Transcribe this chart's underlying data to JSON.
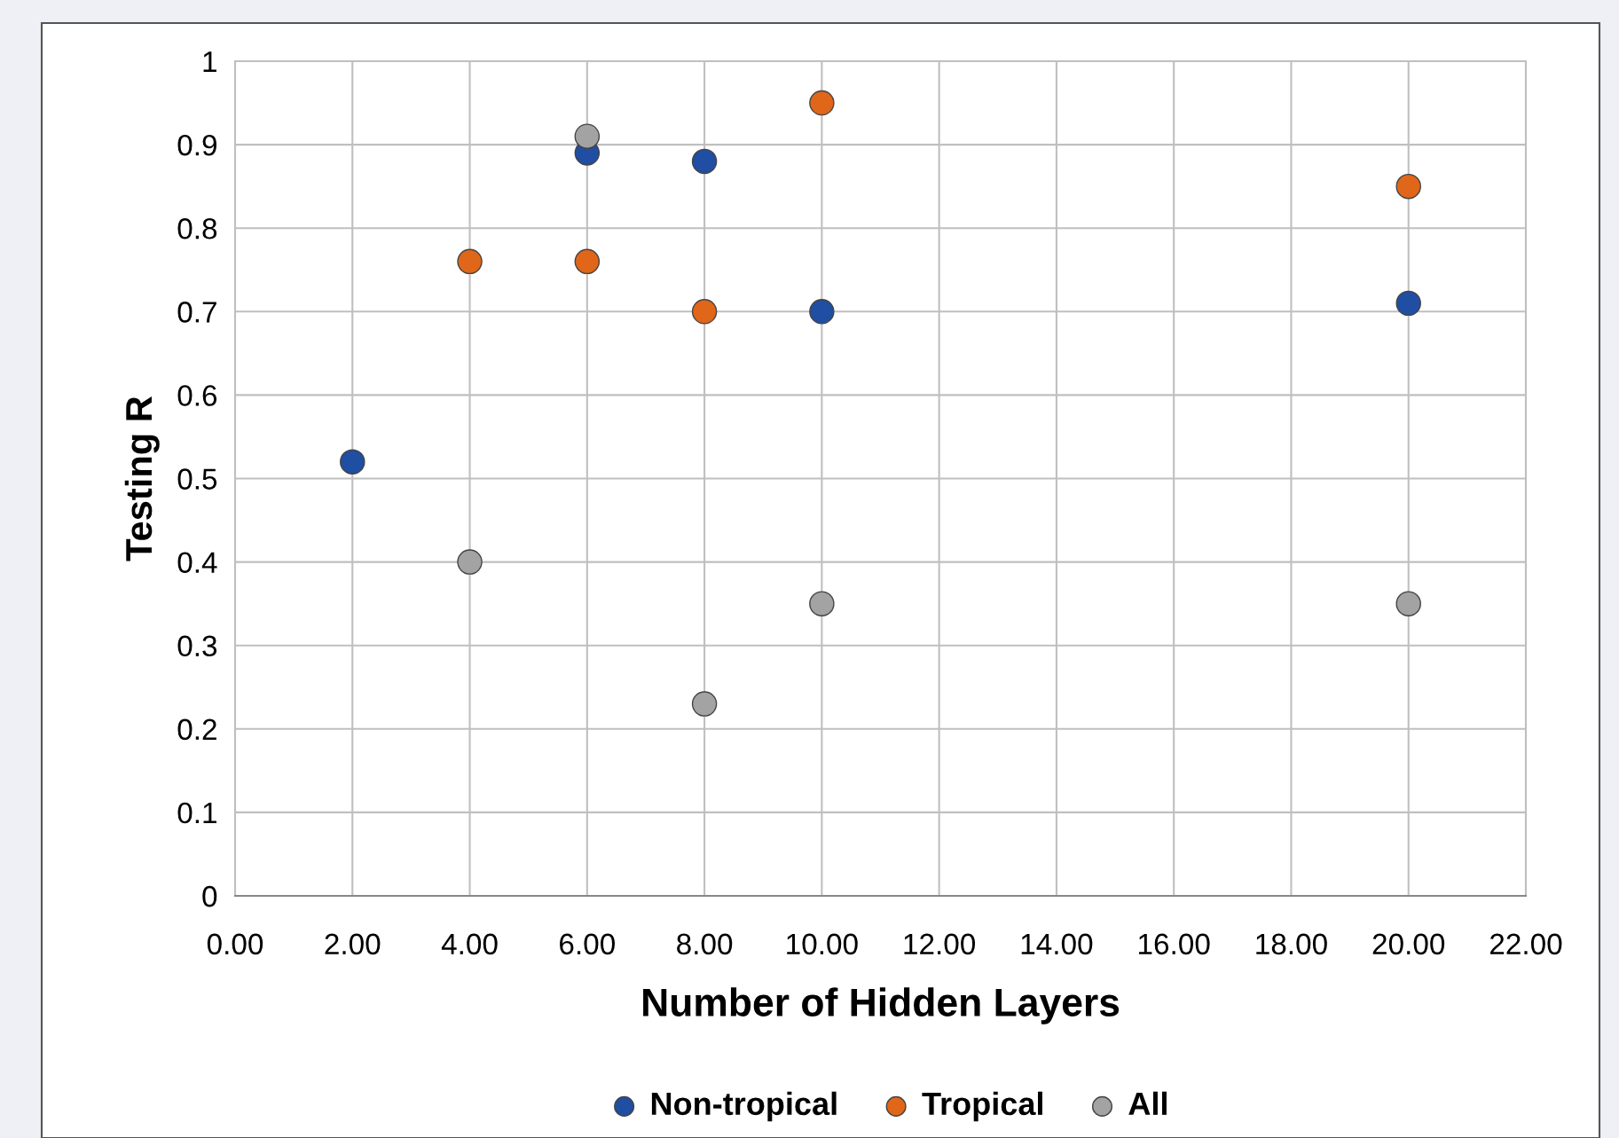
{
  "chart_data": {
    "type": "scatter",
    "xlabel": "Number of Hidden Layers",
    "ylabel": "Testing R",
    "xlim": [
      0,
      22
    ],
    "ylim": [
      0,
      1
    ],
    "xticks": [
      {
        "value": 0,
        "label": "0.00"
      },
      {
        "value": 2,
        "label": "2.00"
      },
      {
        "value": 4,
        "label": "4.00"
      },
      {
        "value": 6,
        "label": "6.00"
      },
      {
        "value": 8,
        "label": "8.00"
      },
      {
        "value": 10,
        "label": "10.00"
      },
      {
        "value": 12,
        "label": "12.00"
      },
      {
        "value": 14,
        "label": "14.00"
      },
      {
        "value": 16,
        "label": "16.00"
      },
      {
        "value": 18,
        "label": "18.00"
      },
      {
        "value": 20,
        "label": "20.00"
      },
      {
        "value": 22,
        "label": "22.00"
      }
    ],
    "yticks": [
      0,
      0.1,
      0.2,
      0.3,
      0.4,
      0.5,
      0.6,
      0.7,
      0.8,
      0.9,
      1
    ],
    "grid": true,
    "legend": "bottom",
    "marker": "circle",
    "series": [
      {
        "name": "Non-tropical",
        "color": "#1f4ea3",
        "x": [
          2,
          6,
          8,
          10,
          20
        ],
        "values": [
          0.52,
          0.89,
          0.88,
          0.7,
          0.71
        ]
      },
      {
        "name": "Tropical",
        "color": "#e0661a",
        "x": [
          4,
          6,
          8,
          10,
          20
        ],
        "values": [
          0.76,
          0.76,
          0.7,
          0.95,
          0.85
        ]
      },
      {
        "name": "All",
        "color": "#a3a3a3",
        "x": [
          4,
          6,
          8,
          10,
          20
        ],
        "values": [
          0.4,
          0.91,
          0.23,
          0.35,
          0.35
        ]
      }
    ]
  }
}
